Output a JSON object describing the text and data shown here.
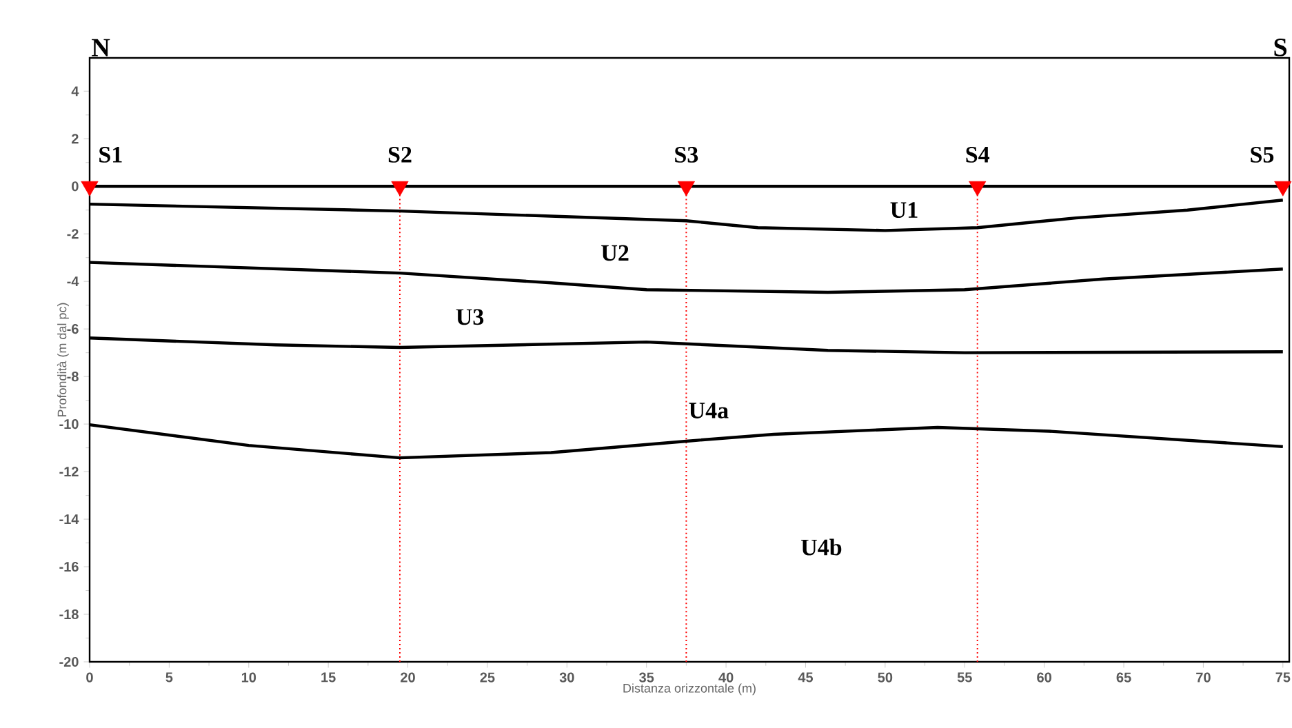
{
  "chart_data": {
    "type": "line",
    "xlabel": "Distanza orizzontale (m)",
    "ylabel": "Profondità (m dal pc)",
    "xlim": [
      0,
      75.4
    ],
    "ylim": [
      -20,
      5.4
    ],
    "xticks": [
      0,
      5,
      10,
      15,
      20,
      25,
      30,
      35,
      40,
      45,
      50,
      55,
      60,
      65,
      70,
      75
    ],
    "yticks": [
      -20,
      -18,
      -16,
      -14,
      -12,
      -10,
      -8,
      -6,
      -4,
      -2,
      0,
      2,
      4
    ],
    "series": [
      {
        "color": "#000000",
        "x": [
          0,
          75
        ],
        "values": [
          0,
          0
        ]
      },
      {
        "color": "#000000",
        "x": [
          0,
          19.5,
          37.5,
          42,
          50,
          55.8,
          62,
          69,
          75
        ],
        "values": [
          -0.75,
          -1.04,
          -1.45,
          -1.74,
          -1.86,
          -1.74,
          -1.33,
          -1.0,
          -0.58
        ]
      },
      {
        "color": "#000000",
        "x": [
          0,
          19.5,
          29,
          35,
          46.4,
          55,
          63.7,
          75
        ],
        "values": [
          -3.2,
          -3.65,
          -4.06,
          -4.35,
          -4.46,
          -4.35,
          -3.9,
          -3.48
        ]
      },
      {
        "color": "#000000",
        "x": [
          0,
          11.7,
          19.5,
          35,
          46.4,
          55,
          75
        ],
        "values": [
          -6.38,
          -6.67,
          -6.78,
          -6.55,
          -6.9,
          -7.0,
          -6.96
        ]
      },
      {
        "color": "#000000",
        "x": [
          0,
          10,
          19.5,
          29,
          37.5,
          43,
          53.3,
          60.3,
          75
        ],
        "values": [
          -10.03,
          -10.9,
          -11.42,
          -11.2,
          -10.72,
          -10.43,
          -10.14,
          -10.3,
          -10.95
        ]
      },
      {
        "type": "scatter",
        "color": "#ff0000",
        "marker": "triangle",
        "x": [
          0,
          19.5,
          37.5,
          55.8,
          75
        ],
        "values": [
          0,
          0,
          0,
          0,
          0
        ]
      }
    ],
    "ref_lines": [
      {
        "axis": "x",
        "value": 19.5,
        "color": "#ff0000",
        "line_style": "dotted"
      },
      {
        "axis": "x",
        "value": 37.5,
        "color": "#ff0000",
        "line_style": "dotted"
      },
      {
        "axis": "x",
        "value": 55.8,
        "color": "#ff0000",
        "line_style": "dotted"
      }
    ],
    "annotations": [
      "N",
      "S",
      "U1",
      "U2",
      "U3",
      "U4a",
      "U4b",
      {
        "text": "S1",
        "x": 0,
        "y": 0
      },
      {
        "text": "S2",
        "x": 19.5,
        "y": 0
      },
      {
        "text": "S3",
        "x": 37.5,
        "y": 0
      },
      {
        "text": "S4",
        "x": 55.8,
        "y": 0
      },
      {
        "text": "S5",
        "x": 75,
        "y": 0
      }
    ]
  }
}
